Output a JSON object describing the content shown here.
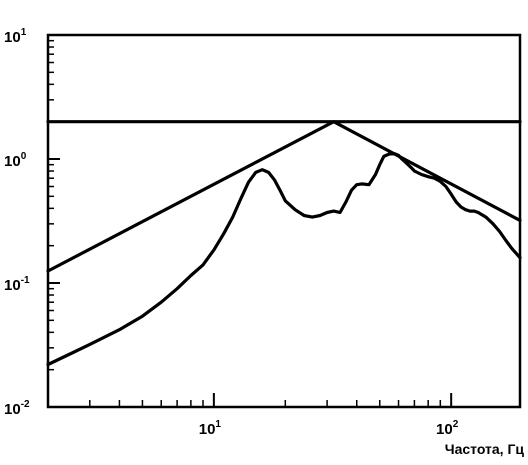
{
  "chart_data": {
    "type": "line",
    "title": "",
    "xlabel": "Частота, Гц",
    "ylabel": "",
    "xscale": "log",
    "yscale": "log",
    "xlim": [
      2,
      195
    ],
    "ylim": [
      0.01,
      10
    ],
    "grid": false,
    "x_ticks": [
      {
        "base": "10",
        "exp": "1",
        "value": 10
      },
      {
        "base": "10",
        "exp": "2",
        "value": 100
      }
    ],
    "y_ticks": [
      {
        "base": "10",
        "exp": "1",
        "value": 10
      },
      {
        "base": "10",
        "exp": "0",
        "value": 1
      },
      {
        "base": "10",
        "exp": "-1",
        "value": 0.1
      },
      {
        "base": "10",
        "exp": "-2",
        "value": 0.01
      }
    ],
    "series": [
      {
        "color": "#000000",
        "x": [
          2,
          32,
          195
        ],
        "y": [
          0.125,
          2.0,
          0.32
        ]
      },
      {
        "color": "#000000",
        "x": [
          2,
          195
        ],
        "y": [
          2.0,
          2.0
        ]
      },
      {
        "color": "#000000",
        "x": [
          2,
          2.5,
          3,
          4,
          5,
          6,
          7,
          8,
          9,
          10,
          11,
          12,
          13,
          14,
          15,
          16,
          17,
          18,
          19,
          20,
          22,
          24,
          26,
          28,
          30,
          32,
          34,
          36,
          38,
          40,
          42,
          45,
          48,
          50,
          52,
          55,
          58,
          60,
          62,
          65,
          68,
          70,
          75,
          80,
          85,
          90,
          95,
          100,
          105,
          110,
          115,
          120,
          125,
          130,
          140,
          150,
          160,
          170,
          180,
          195
        ],
        "y": [
          0.022,
          0.027,
          0.032,
          0.042,
          0.054,
          0.07,
          0.09,
          0.115,
          0.14,
          0.185,
          0.25,
          0.34,
          0.48,
          0.65,
          0.78,
          0.82,
          0.78,
          0.68,
          0.56,
          0.46,
          0.39,
          0.35,
          0.34,
          0.35,
          0.37,
          0.38,
          0.37,
          0.45,
          0.56,
          0.62,
          0.63,
          0.62,
          0.75,
          0.9,
          1.05,
          1.1,
          1.1,
          1.07,
          1.0,
          0.92,
          0.85,
          0.8,
          0.75,
          0.72,
          0.7,
          0.66,
          0.6,
          0.52,
          0.45,
          0.41,
          0.39,
          0.38,
          0.38,
          0.37,
          0.34,
          0.3,
          0.26,
          0.22,
          0.19,
          0.16
        ]
      }
    ]
  }
}
